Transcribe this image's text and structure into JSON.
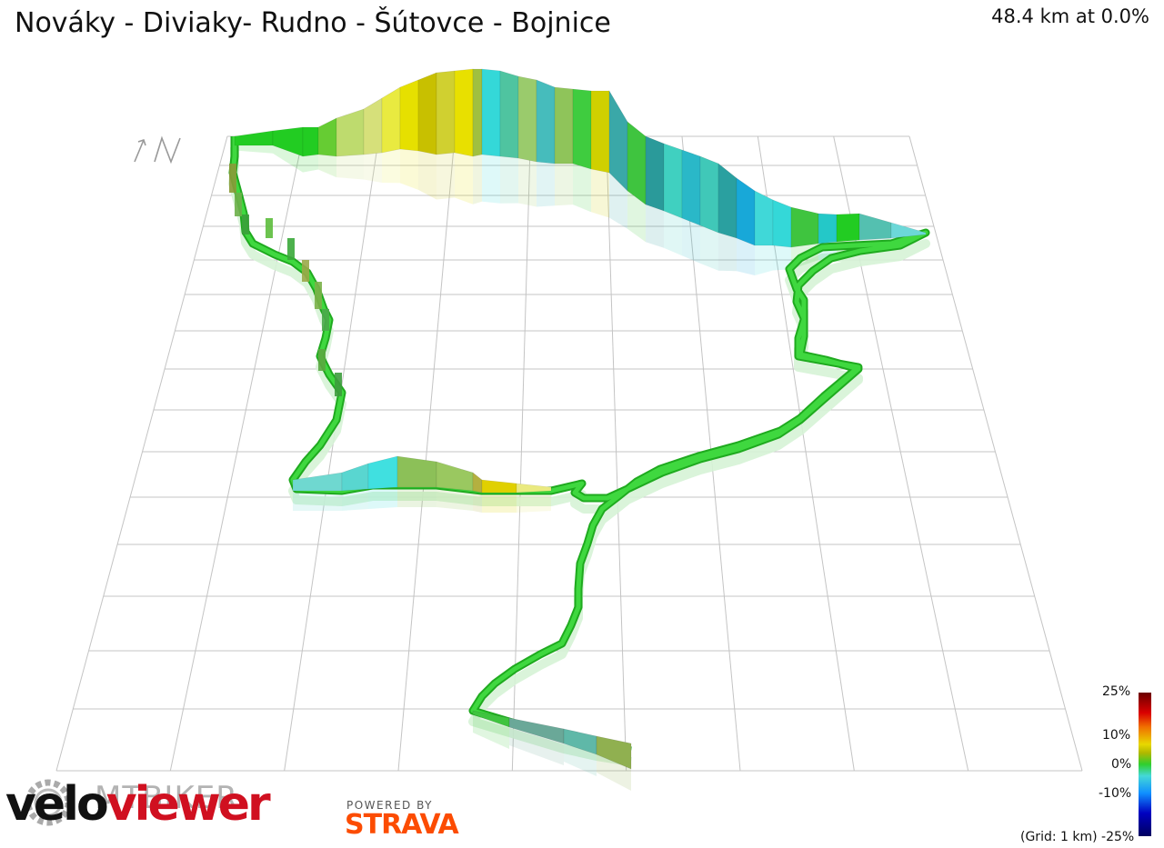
{
  "header": {
    "title": "Nováky - Diviaky- Rudno - Šútovce - Bojnice",
    "stats": "48.4 km at 0.0%"
  },
  "north": "↑N",
  "legend": {
    "label_25": "25%",
    "label_10": "10%",
    "label_0": "0%",
    "label_m10": "-10%",
    "label_m25": "(Grid: 1 km) -25%",
    "colors": [
      "#6b0000",
      "#d90000",
      "#f07000",
      "#e8d800",
      "#2fcf2f",
      "#44d8d8",
      "#1090ff",
      "#0000c0",
      "#000060"
    ]
  },
  "branding": {
    "velo": "velo",
    "viewer": "viewer",
    "watermark": "MTBIKER",
    "powered_by": "POWERED BY",
    "strava": "STRAVA"
  },
  "colors": {
    "route_flat": "#2fcf2f",
    "route_ground": "#c8f0c8",
    "grid": "#bbbbbb",
    "brand_red": "#d01020",
    "strava_orange": "#fc4c02"
  }
}
